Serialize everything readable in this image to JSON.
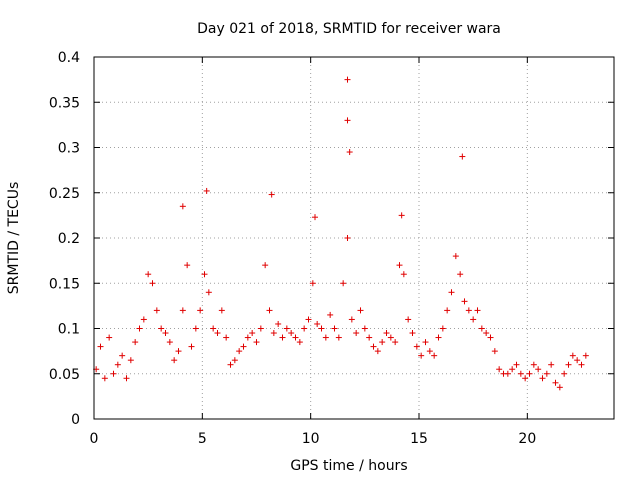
{
  "chart_data": {
    "type": "scatter",
    "title": "Day 021 of 2018, SRMTID for receiver wara",
    "xlabel": "GPS time / hours",
    "ylabel": "SRMTID / TECUs",
    "xlim": [
      0,
      24
    ],
    "ylim": [
      0,
      0.4
    ],
    "grid": true,
    "marker": "+",
    "series_color": "#e00000",
    "x_ticks": [
      "0",
      "5",
      "10",
      "15",
      "20"
    ],
    "y_ticks": [
      "0",
      "0.05",
      "0.1",
      "0.15",
      "0.2",
      "0.25",
      "0.3",
      "0.35",
      "0.4"
    ],
    "series": [
      {
        "name": "SRMTID",
        "x": [
          0.1,
          0.3,
          0.5,
          0.7,
          0.9,
          1.1,
          1.3,
          1.5,
          1.7,
          1.9,
          2.1,
          2.3,
          2.5,
          2.7,
          2.9,
          3.1,
          3.3,
          3.5,
          3.7,
          3.9,
          4.1,
          4.3,
          4.5,
          4.7,
          4.9,
          5.1,
          5.3,
          5.5,
          5.7,
          5.9,
          6.1,
          6.3,
          6.5,
          6.7,
          6.9,
          7.1,
          7.3,
          7.5,
          7.7,
          7.9,
          8.1,
          8.3,
          8.5,
          8.7,
          8.9,
          9.1,
          9.3,
          9.5,
          9.7,
          9.9,
          10.1,
          10.3,
          10.5,
          10.7,
          10.9,
          11.1,
          11.3,
          11.5,
          11.7,
          11.9,
          12.1,
          12.3,
          12.5,
          12.7,
          12.9,
          13.1,
          13.3,
          13.5,
          13.7,
          13.9,
          14.1,
          14.3,
          14.5,
          14.7,
          14.9,
          15.1,
          15.3,
          15.5,
          15.7,
          15.9,
          16.1,
          16.3,
          16.5,
          16.7,
          16.9,
          17.1,
          17.3,
          17.5,
          17.7,
          17.9,
          18.1,
          18.3,
          18.5,
          18.7,
          18.9,
          19.1,
          19.3,
          19.5,
          19.7,
          19.9,
          20.1,
          20.3,
          20.5,
          20.7,
          20.9,
          21.1,
          21.3,
          21.5,
          21.7,
          21.9,
          22.1,
          22.3,
          22.5,
          22.7
        ],
        "y": [
          0.055,
          0.08,
          0.045,
          0.09,
          0.05,
          0.06,
          0.07,
          0.045,
          0.065,
          0.085,
          0.1,
          0.11,
          0.16,
          0.15,
          0.12,
          0.1,
          0.095,
          0.085,
          0.065,
          0.075,
          0.12,
          0.17,
          0.08,
          0.1,
          0.12,
          0.16,
          0.14,
          0.1,
          0.095,
          0.12,
          0.09,
          0.06,
          0.065,
          0.075,
          0.08,
          0.09,
          0.095,
          0.085,
          0.1,
          0.17,
          0.12,
          0.095,
          0.105,
          0.09,
          0.1,
          0.095,
          0.09,
          0.085,
          0.1,
          0.11,
          0.15,
          0.105,
          0.1,
          0.09,
          0.115,
          0.1,
          0.09,
          0.15,
          0.2,
          0.11,
          0.095,
          0.12,
          0.1,
          0.09,
          0.08,
          0.075,
          0.085,
          0.095,
          0.09,
          0.085,
          0.17,
          0.16,
          0.11,
          0.095,
          0.08,
          0.07,
          0.085,
          0.075,
          0.07,
          0.09,
          0.1,
          0.12,
          0.14,
          0.18,
          0.16,
          0.13,
          0.12,
          0.11,
          0.12,
          0.1,
          0.095,
          0.09,
          0.075,
          0.055,
          0.05,
          0.05,
          0.055,
          0.06,
          0.05,
          0.045,
          0.05,
          0.06,
          0.055,
          0.045,
          0.05,
          0.06,
          0.04,
          0.035,
          0.05,
          0.06,
          0.07,
          0.065,
          0.06,
          0.07
        ],
        "peaks": [
          {
            "x": 11.7,
            "y": 0.375
          },
          {
            "x": 11.7,
            "y": 0.33
          },
          {
            "x": 11.8,
            "y": 0.295
          },
          {
            "x": 17.0,
            "y": 0.29
          },
          {
            "x": 5.2,
            "y": 0.252
          },
          {
            "x": 8.2,
            "y": 0.248
          },
          {
            "x": 4.1,
            "y": 0.235
          },
          {
            "x": 14.2,
            "y": 0.225
          },
          {
            "x": 10.2,
            "y": 0.223
          }
        ]
      }
    ]
  }
}
